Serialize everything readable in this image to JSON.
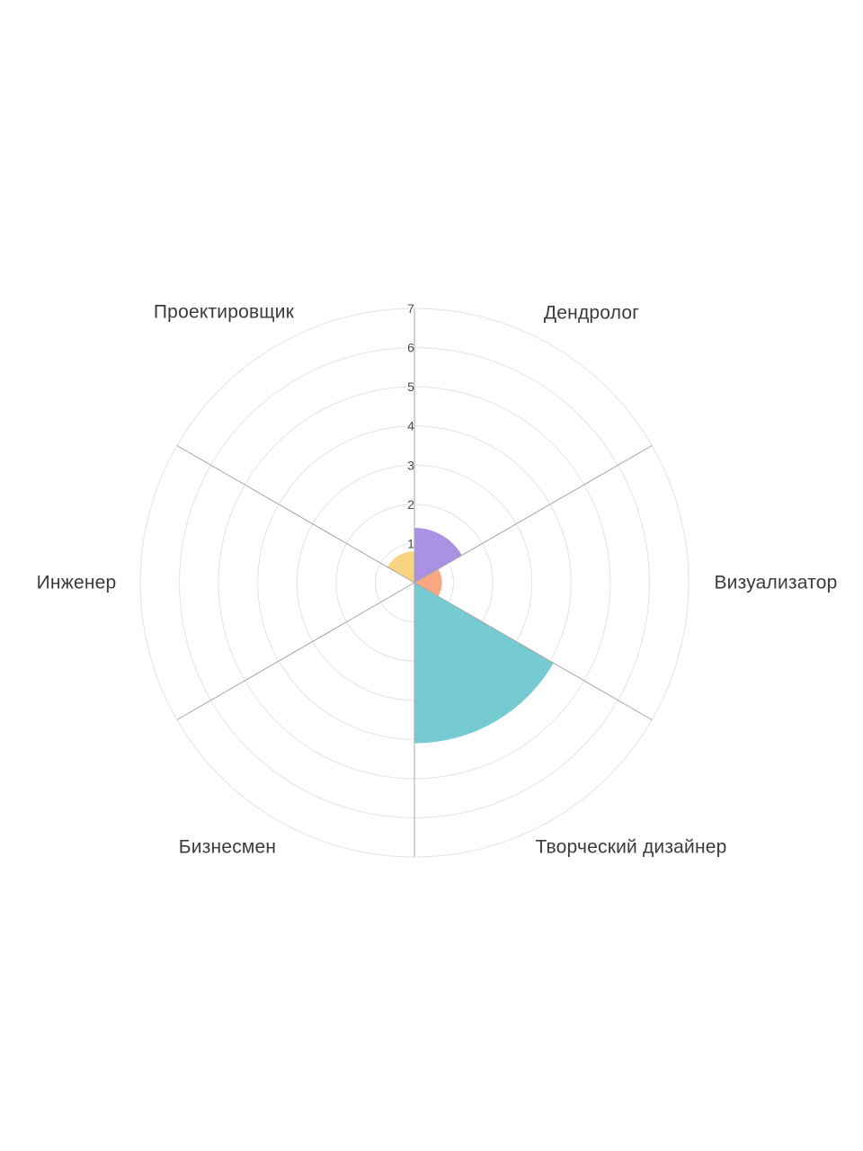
{
  "page": {
    "background": "#ffffff"
  },
  "chart_data": {
    "type": "barpolar",
    "title": "",
    "categories": [
      "Дендролог",
      "Визуализатор",
      "Творческий дизайнер",
      "Бизнесмен",
      "Инженер",
      "Проектировщик"
    ],
    "values": [
      1.4,
      0.7,
      4.1,
      0,
      0,
      0.8
    ],
    "colors": [
      "#a285e0",
      "#f89c74",
      "#66c5cc",
      null,
      null,
      "#f6cf71"
    ],
    "angles_deg": [
      60,
      0,
      300,
      240,
      180,
      120
    ],
    "bar_width_deg": 60,
    "bar_opacity": 0.9,
    "radial_ticks": [
      "1",
      "2",
      "3",
      "4",
      "5",
      "6",
      "7"
    ],
    "radial_range": [
      0,
      7
    ],
    "spoke_angles_deg": [
      30,
      90,
      150,
      210,
      270,
      330
    ],
    "grid": true,
    "legend_shown": false,
    "grid_color": "#e3e3e3",
    "spoke_color": "#a6a6a6",
    "tick_label_color": "#4a4a4a",
    "category_label_color": "#3b3b3b"
  }
}
